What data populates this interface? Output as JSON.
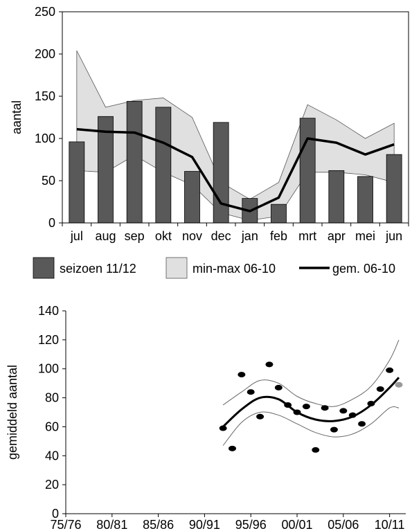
{
  "chart_data": [
    {
      "type": "bar",
      "ylabel": "aantal",
      "ylim": [
        0,
        250
      ],
      "yticks": [
        0,
        50,
        100,
        150,
        200,
        250
      ],
      "grid": false,
      "legend_position": "bottom",
      "categories": [
        "jul",
        "aug",
        "sep",
        "okt",
        "nov",
        "dec",
        "jan",
        "feb",
        "mrt",
        "apr",
        "mei",
        "jun"
      ],
      "series": [
        {
          "name": "seizoen 11/12",
          "type": "bar",
          "color": "#595959",
          "values": [
            96,
            126,
            144,
            137,
            61,
            119,
            29,
            22,
            124,
            62,
            55,
            81
          ]
        },
        {
          "name": "min-max 06-10",
          "type": "area",
          "color": "#e0e0e0",
          "min": [
            62,
            60,
            80,
            60,
            45,
            12,
            3,
            8,
            60,
            60,
            57,
            48
          ],
          "max": [
            204,
            137,
            145,
            148,
            125,
            48,
            28,
            48,
            140,
            122,
            100,
            118
          ]
        },
        {
          "name": "gem. 06-10",
          "type": "line",
          "color": "#000000",
          "values": [
            111,
            108,
            107,
            95,
            78,
            23,
            14,
            30,
            100,
            95,
            81,
            93
          ]
        }
      ]
    },
    {
      "type": "scatter",
      "ylabel": "gemiddeld aantal",
      "ylim": [
        0,
        140
      ],
      "yticks": [
        0,
        20,
        40,
        60,
        80,
        100,
        120,
        140
      ],
      "grid": false,
      "categories": [
        "75/76",
        "80/81",
        "85/86",
        "90/91",
        "95/96",
        "00/01",
        "05/06",
        "10/11"
      ],
      "points": [
        {
          "season": "92/93",
          "value": 59
        },
        {
          "season": "93/94",
          "value": 45
        },
        {
          "season": "94/95",
          "value": 96
        },
        {
          "season": "95/96",
          "value": 84
        },
        {
          "season": "96/97",
          "value": 67
        },
        {
          "season": "97/98",
          "value": 103
        },
        {
          "season": "98/99",
          "value": 87
        },
        {
          "season": "99/00",
          "value": 75
        },
        {
          "season": "00/01",
          "value": 70
        },
        {
          "season": "01/02",
          "value": 74
        },
        {
          "season": "02/03",
          "value": 44
        },
        {
          "season": "03/04",
          "value": 73
        },
        {
          "season": "04/05",
          "value": 58
        },
        {
          "season": "05/06",
          "value": 71
        },
        {
          "season": "06/07",
          "value": 68
        },
        {
          "season": "07/08",
          "value": 62
        },
        {
          "season": "08/09",
          "value": 76
        },
        {
          "season": "09/10",
          "value": 86
        },
        {
          "season": "10/11",
          "value": 99
        }
      ],
      "highlight_point": {
        "season": "11/12",
        "value": 89,
        "color": "#999999"
      },
      "trend": {
        "seasons": [
          "92/93",
          "94/95",
          "96/97",
          "98/99",
          "00/01",
          "02/03",
          "04/05",
          "06/07",
          "08/09",
          "10/11",
          "11/12"
        ],
        "value": [
          60,
          72,
          80,
          79,
          70,
          65,
          64,
          67,
          75,
          87,
          94
        ],
        "lower": [
          47,
          63,
          70,
          68,
          62,
          56,
          53,
          55,
          62,
          73,
          73
        ],
        "upper": [
          75,
          84,
          92,
          90,
          81,
          76,
          74,
          79,
          88,
          106,
          120
        ]
      }
    }
  ]
}
